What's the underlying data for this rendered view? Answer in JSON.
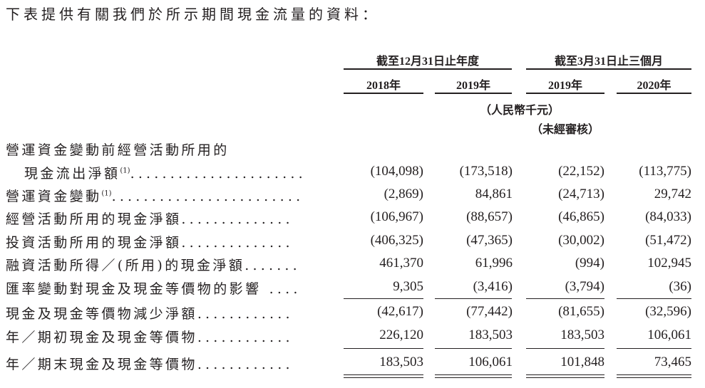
{
  "intro": "下表提供有關我們於所示期間現金流量的資料：",
  "header": {
    "group1": "截至12月31日止年度",
    "group2": "截至3月31日止三個月",
    "years": [
      "2018年",
      "2019年",
      "2019年",
      "2020年"
    ],
    "unit": "（人民幣千元）",
    "unaudited": "（未經審核）"
  },
  "rows": [
    {
      "label": "營運資金變動前經營活動所用的",
      "label2": "現金流出淨額",
      "note": "(1)",
      "dots": "......................",
      "values": [
        "(104,098)",
        "(173,518)",
        "(22,152)",
        "(113,775)"
      ]
    },
    {
      "label": "營運資金變動",
      "note": "(1)",
      "dots": "........................",
      "values": [
        "(2,869)",
        "84,861",
        "(24,713)",
        "29,742"
      ]
    },
    {
      "label": "經營活動所用的現金淨額",
      "dots": "..............",
      "values": [
        "(106,967)",
        "(88,657)",
        "(46,865)",
        "(84,033)"
      ]
    },
    {
      "label": "投資活動所用的現金淨額",
      "dots": "..............",
      "values": [
        "(406,325)",
        "(47,365)",
        "(30,002)",
        "(51,472)"
      ]
    },
    {
      "label": "融資活動所得／(所用)的現金淨額",
      "dots": ".......",
      "values": [
        "461,370",
        "61,996",
        "(994)",
        "102,945"
      ]
    },
    {
      "label": "匯率變動對現金及現金等價物的影響",
      "dots": " ....",
      "values": [
        "9,305",
        "(3,416)",
        "(3,794)",
        "(36)"
      ]
    },
    {
      "label": "現金及現金等價物減少淨額",
      "dots": "............",
      "values": [
        "(42,617)",
        "(77,442)",
        "(81,655)",
        "(32,596)"
      ]
    },
    {
      "label": "年／期初現金及現金等價物",
      "dots": "............",
      "values": [
        "226,120",
        "183,503",
        "183,503",
        "106,061"
      ]
    },
    {
      "label": "年／期末現金及現金等價物",
      "dots": "............",
      "values": [
        "183,503",
        "106,061",
        "101,848",
        "73,465"
      ]
    }
  ]
}
